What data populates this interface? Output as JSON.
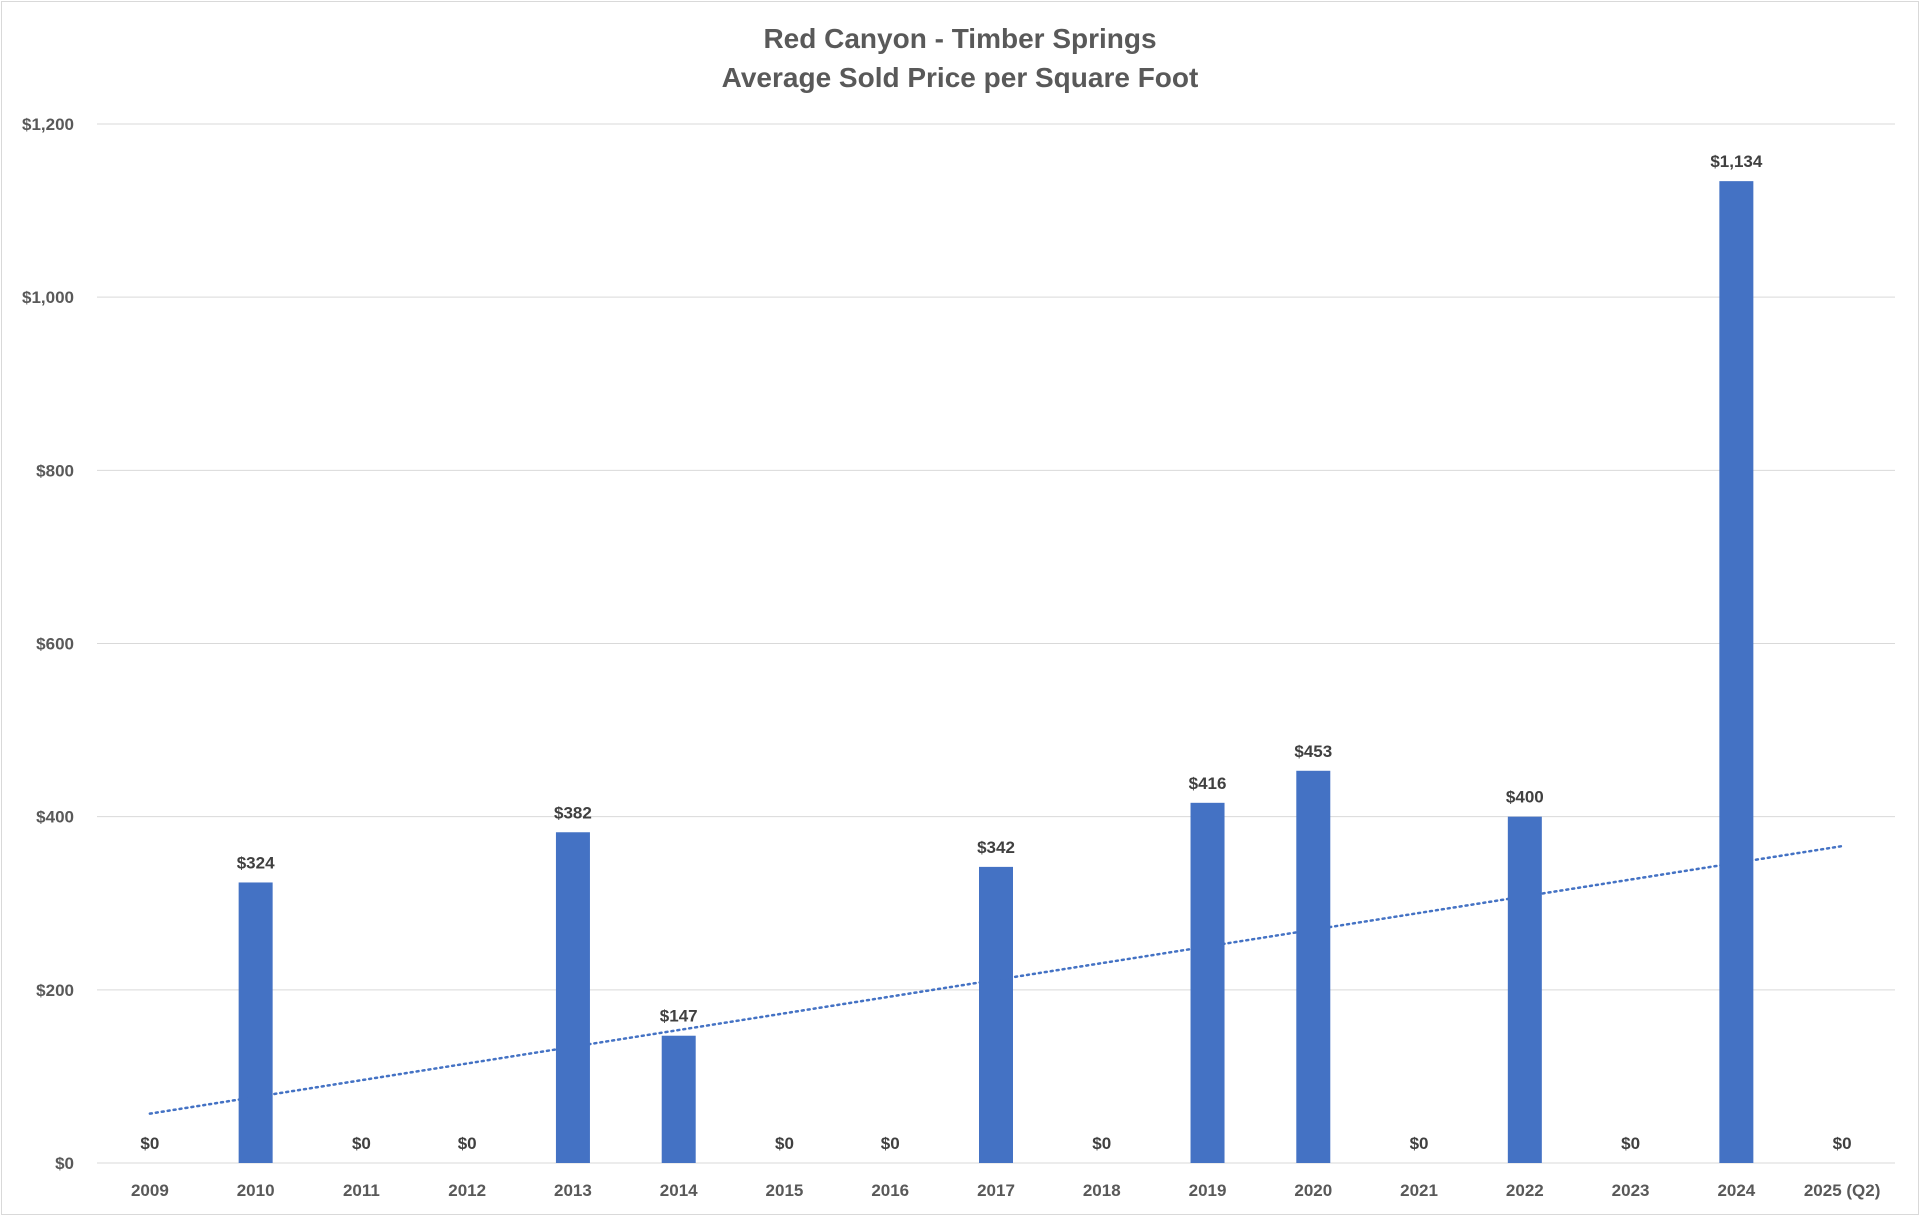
{
  "chart_data": {
    "type": "bar",
    "title": "Red Canyon - Timber Springs",
    "subtitle": "Average Sold Price per Square Foot",
    "xlabel": "",
    "ylabel": "",
    "categories": [
      "2009",
      "2010",
      "2011",
      "2012",
      "2013",
      "2014",
      "2015",
      "2016",
      "2017",
      "2018",
      "2019",
      "2020",
      "2021",
      "2022",
      "2023",
      "2024",
      "2025 (Q2)"
    ],
    "values": [
      0,
      324,
      0,
      0,
      382,
      147,
      0,
      0,
      342,
      0,
      416,
      453,
      0,
      400,
      0,
      1134,
      0
    ],
    "data_labels": [
      "$0",
      "$324",
      "$0",
      "$0",
      "$382",
      "$147",
      "$0",
      "$0",
      "$342",
      "$0",
      "$416",
      "$453",
      "$0",
      "$400",
      "$0",
      "$1,134",
      "$0"
    ],
    "ylim": [
      0,
      1200
    ],
    "yticks": [
      0,
      200,
      400,
      600,
      800,
      1000,
      1200
    ],
    "ytick_labels": [
      "$0",
      "$200",
      "$400",
      "$600",
      "$800",
      "$1,000",
      "$1,200"
    ],
    "trendline": {
      "type": "linear",
      "style": "dotted",
      "start_value": 57,
      "end_value": 366
    },
    "grid": true,
    "legend": "none",
    "colors": {
      "bar": "#4472c4",
      "trendline": "#4472c4",
      "grid": "#d9d9d9",
      "axis_text": "#595959",
      "label_text": "#404040"
    }
  }
}
